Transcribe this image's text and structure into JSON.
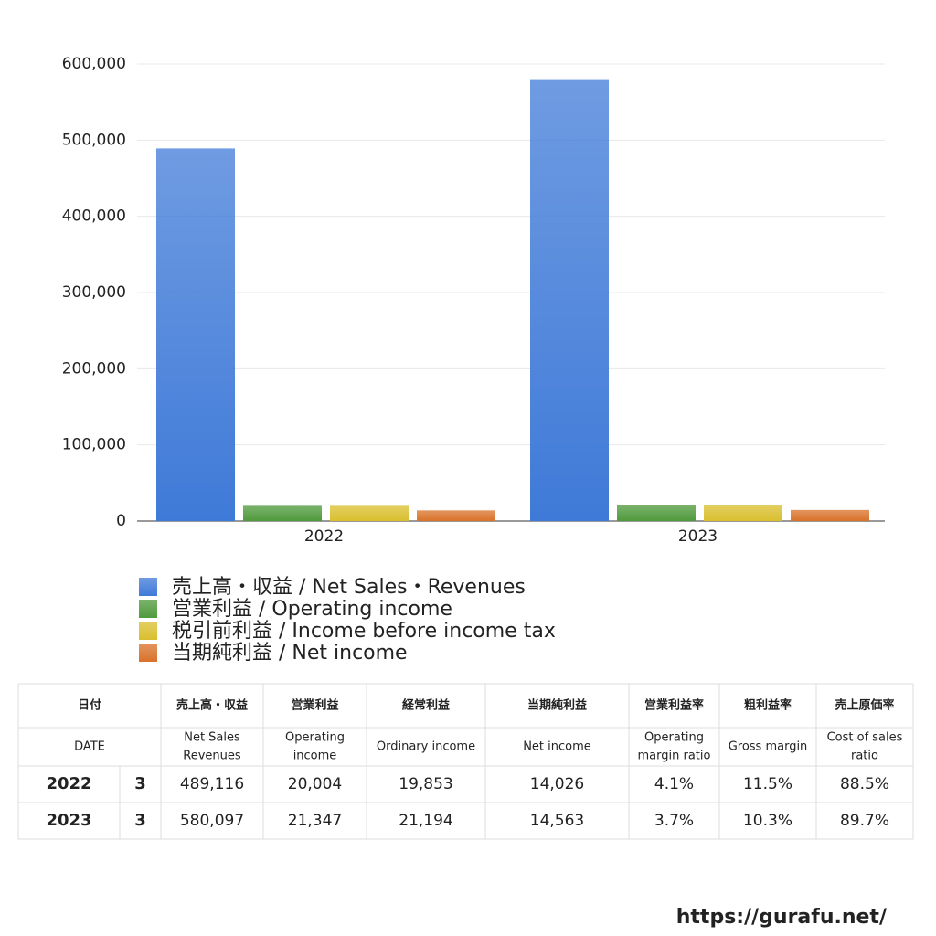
{
  "chart_data": {
    "type": "bar",
    "categories": [
      "2022",
      "2023"
    ],
    "series": [
      {
        "name": "売上高・収益 / Net Sales・Revenues",
        "color": "#3f7ad8",
        "values": [
          489116,
          580097
        ]
      },
      {
        "name": "営業利益 / Operating income",
        "color": "#4f9a3c",
        "values": [
          20004,
          21347
        ]
      },
      {
        "name": "税引前利益 / Income before income tax",
        "color": "#d9bf2e",
        "values": [
          20000,
          21000
        ]
      },
      {
        "name": "当期純利益 / Net income",
        "color": "#d9722a",
        "values": [
          14026,
          14563
        ]
      }
    ],
    "ylim": [
      0,
      600000
    ],
    "yticks": [
      0,
      {
        "value": 100000,
        "label": "100,000"
      },
      {
        "value": 200000,
        "label": "200,000"
      },
      {
        "value": 300000,
        "label": "300,000"
      },
      {
        "value": 400000,
        "label": "400,000"
      },
      {
        "value": 500000,
        "label": "500,000"
      },
      {
        "value": 600000,
        "label": "600,000"
      }
    ],
    "grid": true
  },
  "table": {
    "headers": [
      "日付",
      "売上高・収益",
      "営業利益",
      "経常利益",
      "当期純利益",
      "営業利益率",
      "粗利益率",
      "売上原価率"
    ],
    "subheaders": [
      [
        "DATE"
      ],
      [
        "Net Sales",
        "Revenues"
      ],
      [
        "Operating",
        "income"
      ],
      [
        "Ordinary income"
      ],
      [
        "Net income"
      ],
      [
        "Operating",
        "margin ratio"
      ],
      [
        "Gross margin"
      ],
      [
        "Cost of sales",
        "ratio"
      ]
    ],
    "rows": [
      [
        "2022",
        "3",
        "489,116",
        "20,004",
        "19,853",
        "14,026",
        "4.1%",
        "11.5%",
        "88.5%"
      ],
      [
        "2023",
        "3",
        "580,097",
        "21,347",
        "21,194",
        "14,563",
        "3.7%",
        "10.3%",
        "89.7%"
      ]
    ]
  },
  "footer": {
    "url": "https://gurafu.net/"
  }
}
